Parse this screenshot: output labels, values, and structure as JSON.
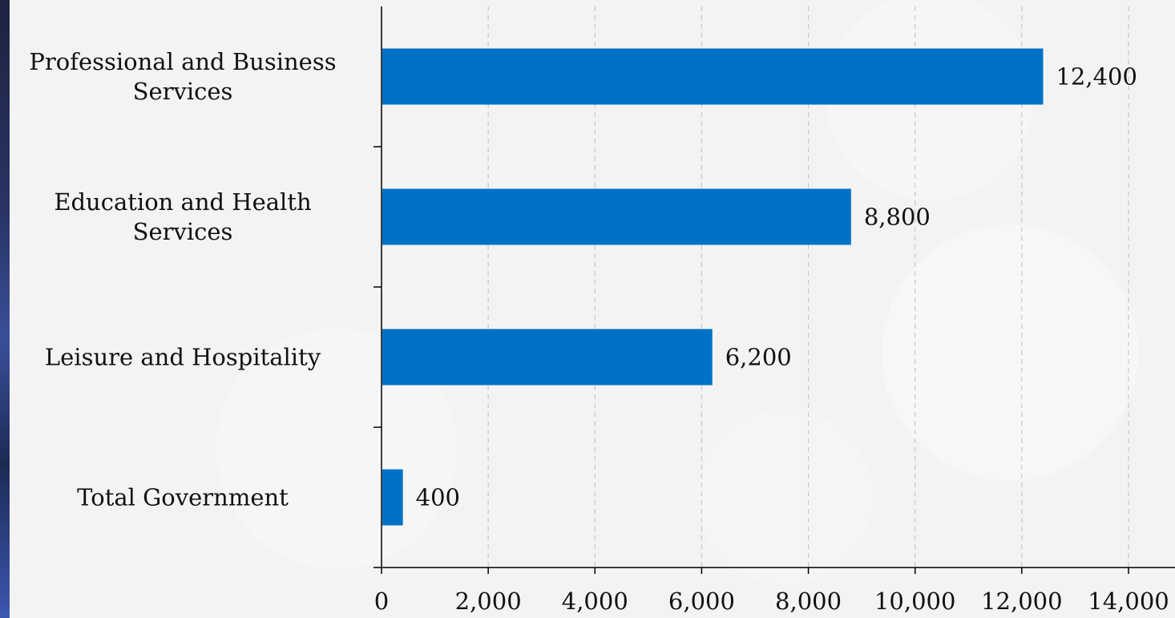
{
  "chart_data": {
    "type": "bar",
    "orientation": "horizontal",
    "categories": [
      [
        "Professional and Business",
        "Services"
      ],
      [
        "Education and Health",
        "Services"
      ],
      [
        "Leisure and Hospitality"
      ],
      [
        "Total Government"
      ]
    ],
    "values": [
      12400,
      8800,
      6200,
      400
    ],
    "value_labels": [
      "12,400",
      "8,800",
      "6,200",
      "400"
    ],
    "xlim": [
      0,
      14000
    ],
    "x_ticks": [
      0,
      2000,
      4000,
      6000,
      8000,
      10000,
      12000,
      14000
    ],
    "x_tick_labels": [
      "0",
      "2,000",
      "4,000",
      "6,000",
      "8,000",
      "10,000",
      "12,000",
      "14,000"
    ],
    "grid": "vertical-dashed",
    "legend": "none",
    "bar_color": "#0072c6"
  }
}
